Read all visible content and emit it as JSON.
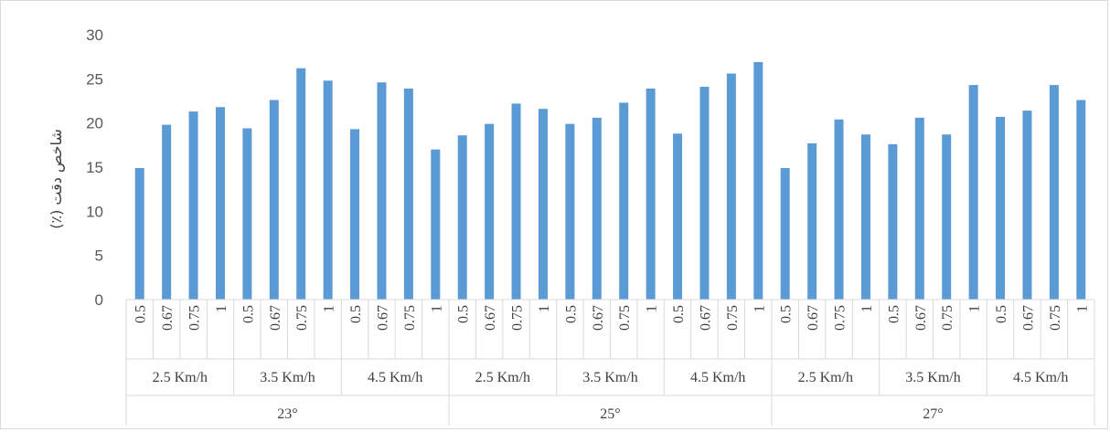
{
  "chart_data": {
    "type": "bar",
    "ylabel": "شاخص دقت (٪)",
    "ylim": [
      0,
      30
    ],
    "yticks": [
      0,
      5,
      10,
      15,
      20,
      25,
      30
    ],
    "grid": false,
    "bar_color": "#5b9bd5",
    "axis_color": "#d9d9d9",
    "level1_labels": [
      "0.5",
      "0.67",
      "0.75",
      "1"
    ],
    "level2_labels": [
      "2.5 Km/h",
      "3.5 Km/h",
      "4.5 Km/h"
    ],
    "level3_labels": [
      "23°",
      "25°",
      "27°"
    ],
    "values": [
      14.9,
      19.8,
      21.3,
      21.8,
      19.4,
      22.6,
      26.2,
      24.8,
      19.3,
      24.6,
      23.9,
      17.0,
      18.6,
      19.9,
      22.2,
      21.6,
      19.9,
      20.6,
      22.3,
      23.9,
      18.8,
      24.1,
      25.6,
      26.9,
      14.9,
      17.7,
      20.4,
      18.7,
      17.6,
      20.6,
      18.7,
      24.3,
      20.7,
      21.4,
      24.3,
      22.6
    ]
  }
}
